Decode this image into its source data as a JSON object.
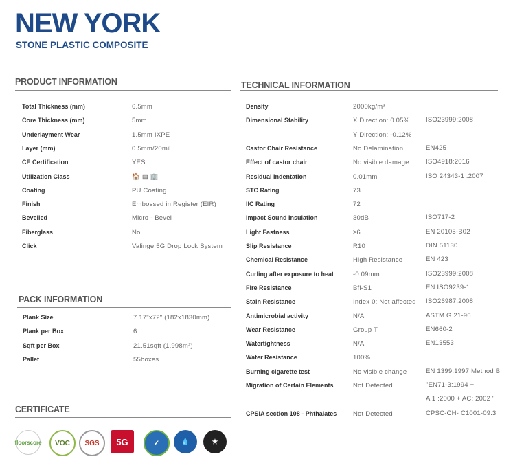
{
  "header": {
    "title": "NEW YORK",
    "subtitle": "STONE PLASTIC COMPOSITE"
  },
  "product": {
    "heading": "PRODUCT INFORMATION",
    "rows": [
      {
        "label": "Total Thickness (mm)",
        "value": "6.5mm"
      },
      {
        "label": "Core Thickness (mm)",
        "value": "5mm"
      },
      {
        "label": "Underlayment Wear",
        "value": "1.5mm IXPE"
      },
      {
        "label": "Layer (mm)",
        "value": "0.5mm/20mil"
      },
      {
        "label": "CE Certification",
        "value": "YES"
      },
      {
        "label": "Utilization Class",
        "value": "🏠 ▤ 🏢"
      },
      {
        "label": "Coating",
        "value": "PU Coating"
      },
      {
        "label": "Finish",
        "value": "Embossed in Register (EIR)"
      },
      {
        "label": "Bevelled",
        "value": "Micro - Bevel"
      },
      {
        "label": "Fiberglass",
        "value": "No"
      },
      {
        "label": "Click",
        "value": "Valinge 5G Drop Lock System"
      }
    ]
  },
  "pack": {
    "heading": "PACK INFORMATION",
    "rows": [
      {
        "label": "Plank Size",
        "value": "7.17\"x72\" (182x1830mm)"
      },
      {
        "label": "Plank per Box",
        "value": "6"
      },
      {
        "label": "Sqft per Box",
        "value": "21.51sqft (1.998m²)"
      },
      {
        "label": "Pallet",
        "value": "55boxes"
      }
    ]
  },
  "certificate": {
    "heading": "CERTIFICATE",
    "badges": [
      "floorscore",
      "VOC",
      "SGS",
      "5G",
      "✓",
      "💧",
      "★"
    ]
  },
  "technical": {
    "heading": "TECHNICAL INFORMATION",
    "rows": [
      {
        "label": "Density",
        "value": [
          "2000kg/m³"
        ]
      },
      {
        "label": "Dimensional Stability",
        "value": [
          "X  Direction: 0.05%",
          "Y Direction: -0.12%"
        ],
        "standard": [
          "ISO23999:2008"
        ]
      },
      {
        "label": "Castor Chair Resistance",
        "value": [
          "No Delamination"
        ],
        "standard": [
          "EN425"
        ]
      },
      {
        "label": "Effect of castor chair",
        "value": [
          "No visible damage"
        ],
        "standard": [
          "ISO4918:2016"
        ]
      },
      {
        "label": "Residual indentation",
        "value": [
          "0.01mm"
        ],
        "standard": [
          "ISO 24343-1 :2007"
        ]
      },
      {
        "label": "STC Rating",
        "value": [
          "73"
        ]
      },
      {
        "label": "IIC Rating",
        "value": [
          "72"
        ]
      },
      {
        "label": "Impact Sound Insulation",
        "value": [
          "30dB"
        ],
        "standard": [
          "ISO717-2"
        ]
      },
      {
        "label": "Light Fastness",
        "value": [
          "≥6"
        ],
        "standard": [
          "EN 20105-B02"
        ]
      },
      {
        "label": "Slip Resistance",
        "value": [
          "R10"
        ],
        "standard": [
          "DIN 51130"
        ]
      },
      {
        "label": "Chemical Resistance",
        "value": [
          "High Resistance"
        ],
        "standard": [
          "EN 423"
        ]
      },
      {
        "label": "Curling after exposure to heat",
        "value": [
          "-0.09mm"
        ],
        "standard": [
          "ISO23999:2008"
        ]
      },
      {
        "label": "Fire Resistance",
        "value": [
          "Bfl-S1"
        ],
        "standard": [
          "EN ISO9239-1"
        ]
      },
      {
        "label": "Stain Resistance",
        "value": [
          "Index 0: Not affected"
        ],
        "standard": [
          "ISO26987:2008"
        ]
      },
      {
        "label": "Antimicrobial activity",
        "value": [
          "N/A"
        ],
        "standard": [
          "ASTM G 21-96"
        ]
      },
      {
        "label": "Wear Resistance",
        "value": [
          "Group T"
        ],
        "standard": [
          "EN660-2"
        ]
      },
      {
        "label": "Watertightness",
        "value": [
          "N/A"
        ],
        "standard": [
          "EN13553"
        ]
      },
      {
        "label": "Water Resistance",
        "value": [
          "100%"
        ]
      },
      {
        "label": "Burning cigarette test",
        "value": [
          "No visible change"
        ],
        "standard": [
          "EN 1399:1997 Method B"
        ]
      },
      {
        "label": "Migration of Certain Elements",
        "value": [
          "Not Detected"
        ],
        "standard": [
          "\"EN71-3:1994 +",
          "A 1 :2000 + AC: 2002 \""
        ]
      },
      {
        "label": "CPSIA section 108 - Phthalates",
        "value": [
          "Not Detected"
        ],
        "standard": [
          "CPSC-CH- C1001-09.3"
        ]
      }
    ]
  }
}
